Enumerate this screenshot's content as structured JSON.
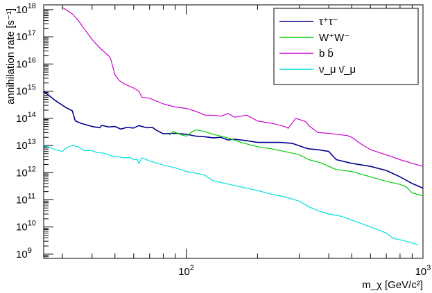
{
  "chart_data": {
    "type": "line",
    "title": "",
    "xlabel": "m_χ [GeV/c²]",
    "ylabel": "annihilation rate [s⁻¹]",
    "x_scale": "log",
    "y_scale": "log",
    "xlim": [
      25,
      1000
    ],
    "ylim": [
      700000000.0,
      1.5e+18
    ],
    "grid": false,
    "legend_position": "top-right",
    "x_ticks": [
      {
        "value": 100,
        "base": "10",
        "exp": "2"
      },
      {
        "value": 1000,
        "base": "10",
        "exp": "3"
      }
    ],
    "y_ticks": [
      {
        "value": 1000000000.0,
        "base": "10",
        "exp": "9"
      },
      {
        "value": 10000000000.0,
        "base": "10",
        "exp": "10"
      },
      {
        "value": 100000000000.0,
        "base": "10",
        "exp": "11"
      },
      {
        "value": 1000000000000.0,
        "base": "10",
        "exp": "12"
      },
      {
        "value": 10000000000000.0,
        "base": "10",
        "exp": "13"
      },
      {
        "value": 100000000000000.0,
        "base": "10",
        "exp": "14"
      },
      {
        "value": 1000000000000000.0,
        "base": "10",
        "exp": "15"
      },
      {
        "value": 1e+16,
        "base": "10",
        "exp": "16"
      },
      {
        "value": 1e+17,
        "base": "10",
        "exp": "17"
      },
      {
        "value": 1e+18,
        "base": "10",
        "exp": "18"
      }
    ],
    "series": [
      {
        "name": "τ⁺τ⁻",
        "color": "#00008b",
        "points": [
          [
            25,
            1000000000000000.0
          ],
          [
            28,
            450000000000000.0
          ],
          [
            31,
            250000000000000.0
          ],
          [
            33,
            190000000000000.0
          ],
          [
            34,
            80000000000000.0
          ],
          [
            36,
            65000000000000.0
          ],
          [
            40,
            50000000000000.0
          ],
          [
            43,
            45000000000000.0
          ],
          [
            44,
            55000000000000.0
          ],
          [
            47,
            48000000000000.0
          ],
          [
            50,
            50000000000000.0
          ],
          [
            53,
            40000000000000.0
          ],
          [
            56,
            46000000000000.0
          ],
          [
            60,
            44000000000000.0
          ],
          [
            63,
            54000000000000.0
          ],
          [
            68,
            45000000000000.0
          ],
          [
            72,
            46000000000000.0
          ],
          [
            75,
            36000000000000.0
          ],
          [
            80,
            27000000000000.0
          ],
          [
            90,
            28000000000000.0
          ],
          [
            100,
            26000000000000.0
          ],
          [
            110,
            22000000000000.0
          ],
          [
            120,
            21000000000000.0
          ],
          [
            130,
            19000000000000.0
          ],
          [
            140,
            20000000000000.0
          ],
          [
            150,
            16000000000000.0
          ],
          [
            160,
            17000000000000.0
          ],
          [
            180,
            15000000000000.0
          ],
          [
            200,
            13000000000000.0
          ],
          [
            220,
            13000000000000.0
          ],
          [
            250,
            13000000000000.0
          ],
          [
            280,
            12000000000000.0
          ],
          [
            320,
            8000000000000.0
          ],
          [
            330,
            7500000000000.0
          ],
          [
            360,
            7000000000000.0
          ],
          [
            400,
            6000000000000.0
          ],
          [
            430,
            3000000000000.0
          ],
          [
            500,
            2200000000000.0
          ],
          [
            600,
            1700000000000.0
          ],
          [
            700,
            1200000000000.0
          ],
          [
            800,
            700000000000.0
          ],
          [
            900,
            400000000000.0
          ],
          [
            1000,
            270000000000.0
          ]
        ]
      },
      {
        "name": "W⁺W⁻",
        "color": "#00cc00",
        "points": [
          [
            85,
            24000000000000.0
          ],
          [
            88,
            33000000000000.0
          ],
          [
            95,
            25000000000000.0
          ],
          [
            100,
            22000000000000.0
          ],
          [
            105,
            31000000000000.0
          ],
          [
            110,
            38000000000000.0
          ],
          [
            120,
            32000000000000.0
          ],
          [
            130,
            26000000000000.0
          ],
          [
            150,
            19000000000000.0
          ],
          [
            170,
            13000000000000.0
          ],
          [
            200,
            9000000000000.0
          ],
          [
            230,
            7500000000000.0
          ],
          [
            260,
            6000000000000.0
          ],
          [
            300,
            4600000000000.0
          ],
          [
            330,
            3000000000000.0
          ],
          [
            370,
            2300000000000.0
          ],
          [
            400,
            1700000000000.0
          ],
          [
            430,
            1300000000000.0
          ],
          [
            500,
            1100000000000.0
          ],
          [
            600,
            700000000000.0
          ],
          [
            700,
            480000000000.0
          ],
          [
            800,
            370000000000.0
          ],
          [
            850,
            300000000000.0
          ],
          [
            900,
            180000000000.0
          ],
          [
            1000,
            140000000000.0
          ]
        ]
      },
      {
        "name": "b b̄",
        "color": "#cc00cc",
        "points": [
          [
            30,
            1.2e+18
          ],
          [
            33,
            7e+17
          ],
          [
            35,
            4e+17
          ],
          [
            37,
            2e+17
          ],
          [
            40,
            8e+16
          ],
          [
            43,
            4e+16
          ],
          [
            47,
            2e+16
          ],
          [
            48,
            1.5e+16
          ],
          [
            50,
            4000000000000000.0
          ],
          [
            52,
            2500000000000000.0
          ],
          [
            55,
            1800000000000000.0
          ],
          [
            60,
            1300000000000000.0
          ],
          [
            63,
            1000000000000000.0
          ],
          [
            65,
            600000000000000.0
          ],
          [
            70,
            550000000000000.0
          ],
          [
            80,
            340000000000000.0
          ],
          [
            90,
            260000000000000.0
          ],
          [
            100,
            230000000000000.0
          ],
          [
            110,
            180000000000000.0
          ],
          [
            120,
            130000000000000.0
          ],
          [
            130,
            130000000000000.0
          ],
          [
            140,
            120000000000000.0
          ],
          [
            150,
            150000000000000.0
          ],
          [
            160,
            110000000000000.0
          ],
          [
            180,
            130000000000000.0
          ],
          [
            200,
            80000000000000.0
          ],
          [
            230,
            65000000000000.0
          ],
          [
            260,
            50000000000000.0
          ],
          [
            270,
            43000000000000.0
          ],
          [
            290,
            100000000000000.0
          ],
          [
            320,
            75000000000000.0
          ],
          [
            330,
            53000000000000.0
          ],
          [
            360,
            30000000000000.0
          ],
          [
            400,
            28000000000000.0
          ],
          [
            430,
            26000000000000.0
          ],
          [
            480,
            23000000000000.0
          ],
          [
            500,
            20000000000000.0
          ],
          [
            550,
            11000000000000.0
          ],
          [
            600,
            7000000000000.0
          ],
          [
            700,
            4500000000000.0
          ],
          [
            800,
            3000000000000.0
          ],
          [
            900,
            2200000000000.0
          ],
          [
            1000,
            1700000000000.0
          ]
        ]
      },
      {
        "name": "ν_μ ν̄_μ",
        "color": "#00e0e0",
        "points": [
          [
            25,
            10000000000000.0
          ],
          [
            28,
            7000000000000.0
          ],
          [
            30,
            6000000000000.0
          ],
          [
            31,
            8000000000000.0
          ],
          [
            33,
            10000000000000.0
          ],
          [
            35,
            9000000000000.0
          ],
          [
            37,
            6500000000000.0
          ],
          [
            40,
            6500000000000.0
          ],
          [
            42,
            5500000000000.0
          ],
          [
            45,
            5200000000000.0
          ],
          [
            48,
            4200000000000.0
          ],
          [
            50,
            4000000000000.0
          ],
          [
            55,
            3500000000000.0
          ],
          [
            58,
            3600000000000.0
          ],
          [
            60,
            3000000000000.0
          ],
          [
            62,
            3100000000000.0
          ],
          [
            63,
            2200000000000.0
          ],
          [
            65,
            3500000000000.0
          ],
          [
            70,
            2700000000000.0
          ],
          [
            80,
            1900000000000.0
          ],
          [
            90,
            1500000000000.0
          ],
          [
            100,
            1100000000000.0
          ],
          [
            110,
            950000000000.0
          ],
          [
            120,
            800000000000.0
          ],
          [
            130,
            500000000000.0
          ],
          [
            150,
            380000000000.0
          ],
          [
            170,
            300000000000.0
          ],
          [
            200,
            220000000000.0
          ],
          [
            230,
            160000000000.0
          ],
          [
            260,
            130000000000.0
          ],
          [
            300,
            90000000000.0
          ],
          [
            330,
            55000000000.0
          ],
          [
            360,
            40000000000.0
          ],
          [
            400,
            30000000000.0
          ],
          [
            450,
            25000000000.0
          ],
          [
            500,
            18000000000.0
          ],
          [
            600,
            10000000000.0
          ],
          [
            700,
            6000000000.0
          ],
          [
            750,
            3800000000.0
          ],
          [
            800,
            3400000000.0
          ],
          [
            900,
            2600000000.0
          ],
          [
            950,
            2200000000.0
          ]
        ]
      }
    ]
  }
}
